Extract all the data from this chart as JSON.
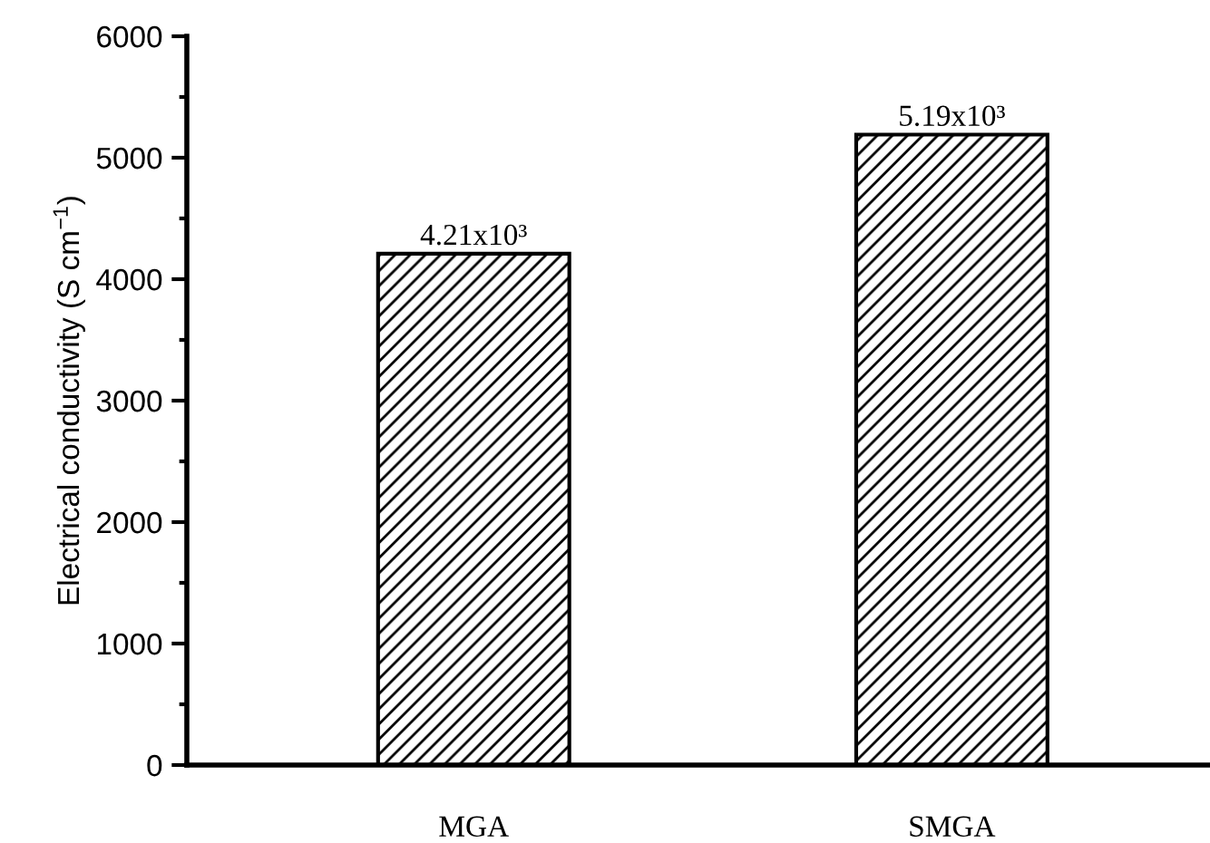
{
  "chart_data": {
    "type": "bar",
    "categories": [
      "MGA",
      "SMGA"
    ],
    "values": [
      4210,
      5190
    ],
    "value_labels": [
      "4.21x10³",
      "5.19x10³"
    ],
    "color": "#000000",
    "ylabel": "Electrical conductivity (S cm$^{−1}$)",
    "ylim": [
      0,
      6000
    ],
    "yticks": [
      0,
      1000,
      2000,
      3000,
      4000,
      5000,
      6000
    ],
    "grid": false
  }
}
